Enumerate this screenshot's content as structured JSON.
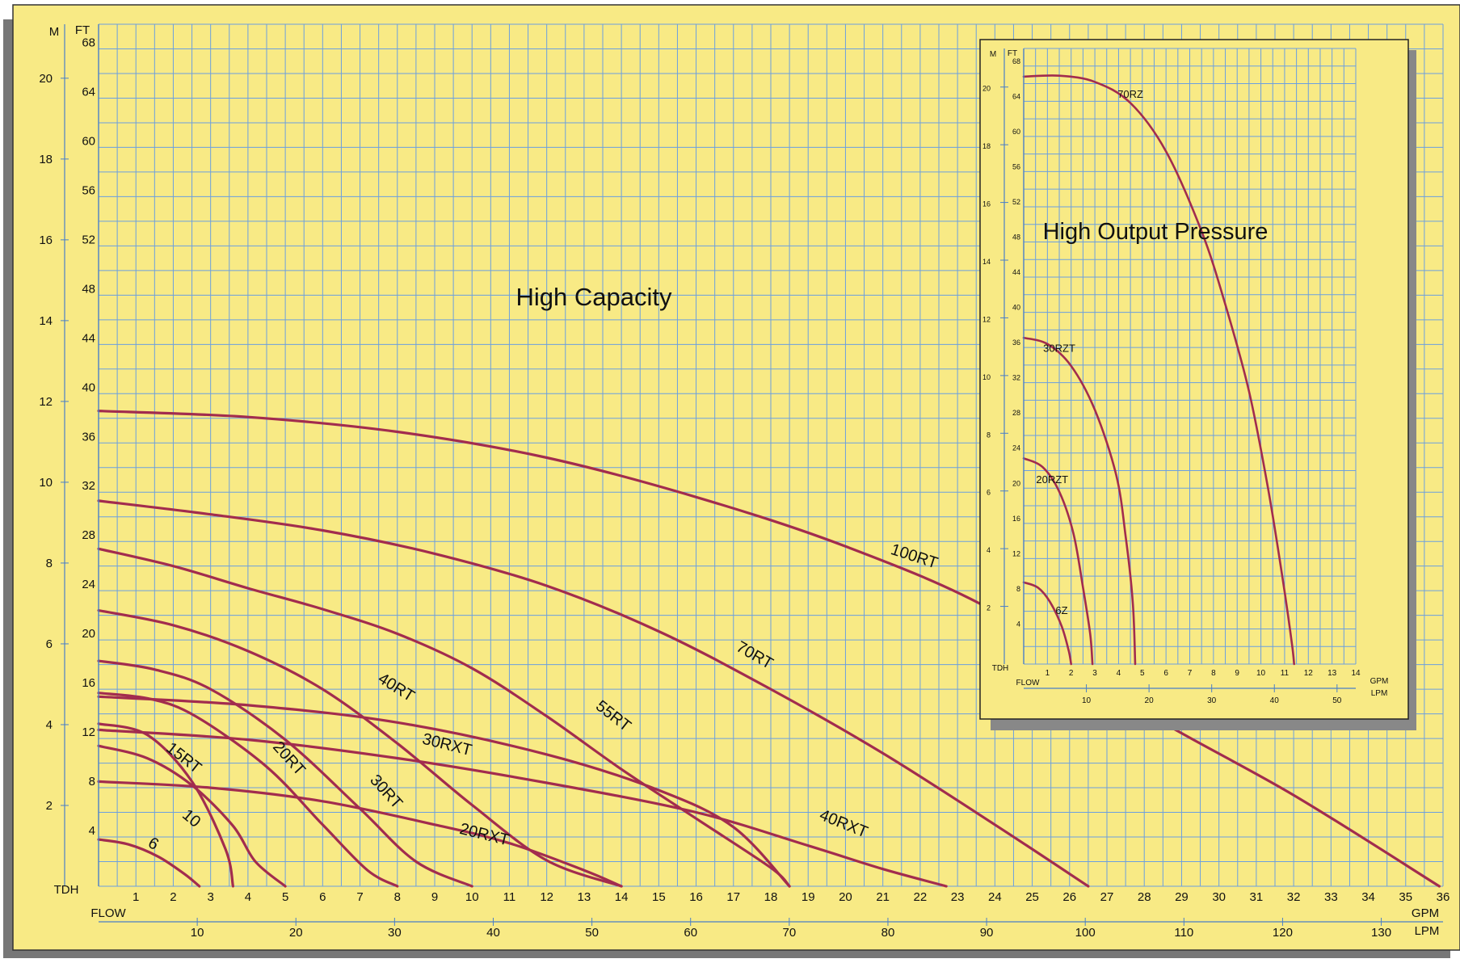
{
  "colors": {
    "background": "#f8ea85",
    "grid": "#6b9fe0",
    "curve": "#a22c4e",
    "shadow": "#777777",
    "text": "#111111"
  },
  "chart_data": [
    {
      "name": "main",
      "type": "line",
      "title": "High Capacity",
      "left_axis_labels": {
        "ft": "FT",
        "m": "M",
        "tdh": "TDH"
      },
      "bottom_axis_labels": {
        "flow": "FLOW",
        "gpm": "GPM",
        "lpm": "LPM"
      },
      "ft_ticks": [
        4,
        8,
        12,
        16,
        20,
        24,
        28,
        32,
        36,
        40,
        44,
        48,
        52,
        56,
        60,
        64,
        68
      ],
      "m_ticks": [
        2,
        4,
        6,
        8,
        10,
        12,
        14,
        16,
        18,
        20
      ],
      "gpm_ticks": [
        1,
        2,
        3,
        4,
        5,
        6,
        7,
        8,
        9,
        10,
        11,
        12,
        13,
        14,
        15,
        16,
        17,
        18,
        19,
        20,
        21,
        22,
        23,
        24,
        25,
        26,
        27,
        28,
        29,
        30,
        31,
        32,
        33,
        34,
        35,
        36
      ],
      "lpm_ticks": [
        10,
        20,
        30,
        40,
        50,
        60,
        70,
        80,
        90,
        100,
        110,
        120,
        130
      ],
      "xlim": [
        0,
        36
      ],
      "ylim": [
        0,
        70
      ],
      "grid": true,
      "series": [
        {
          "name": "100RT",
          "label_at": [
            21.8,
            26.4
          ],
          "label_angle": 18,
          "points": [
            [
              0,
              38.6
            ],
            [
              4,
              38.1
            ],
            [
              8,
              36.9
            ],
            [
              12,
              34.8
            ],
            [
              16,
              31.6
            ],
            [
              20,
              27.6
            ],
            [
              24,
              22.3
            ],
            [
              28,
              14.2
            ],
            [
              32,
              7.4
            ],
            [
              35.9,
              0
            ]
          ]
        },
        {
          "name": "70RT",
          "label_at": [
            17.5,
            18.4
          ],
          "label_angle": 30,
          "points": [
            [
              0,
              31.3
            ],
            [
              3,
              30.2
            ],
            [
              6,
              28.9
            ],
            [
              9,
              27.0
            ],
            [
              12,
              24.4
            ],
            [
              15,
              20.7
            ],
            [
              18,
              16.0
            ],
            [
              21,
              10.8
            ],
            [
              24,
              5.0
            ],
            [
              26.5,
              0
            ]
          ]
        },
        {
          "name": "55RT",
          "label_at": [
            13.7,
            13.5
          ],
          "label_angle": 38,
          "points": [
            [
              0,
              27.4
            ],
            [
              2,
              26.0
            ],
            [
              4,
              24.2
            ],
            [
              6,
              22.5
            ],
            [
              8,
              20.5
            ],
            [
              10,
              17.7
            ],
            [
              12,
              13.8
            ],
            [
              14,
              9.5
            ],
            [
              16,
              5.5
            ],
            [
              18,
              1.5
            ],
            [
              18.5,
              0
            ]
          ]
        },
        {
          "name": "40RT",
          "label_at": [
            7.9,
            15.8
          ],
          "label_angle": 32,
          "points": [
            [
              0,
              22.4
            ],
            [
              2,
              21.2
            ],
            [
              4,
              19.1
            ],
            [
              6,
              16.0
            ],
            [
              8,
              11.6
            ],
            [
              10,
              6.6
            ],
            [
              12,
              2.1
            ],
            [
              14,
              0
            ]
          ]
        },
        {
          "name": "30RT",
          "label_at": [
            7.6,
            7.4
          ],
          "label_angle": 48,
          "points": [
            [
              0,
              18.3
            ],
            [
              1.5,
              17.6
            ],
            [
              3,
              16.0
            ],
            [
              5,
              11.9
            ],
            [
              7,
              6.3
            ],
            [
              8.5,
              2.0
            ],
            [
              10,
              0
            ]
          ]
        },
        {
          "name": "20RT",
          "label_at": [
            5.0,
            10.1
          ],
          "label_angle": 48,
          "points": [
            [
              0,
              15.7
            ],
            [
              1.4,
              15.2
            ],
            [
              2.6,
              13.8
            ],
            [
              4.5,
              9.7
            ],
            [
              6,
              5.0
            ],
            [
              7.2,
              1.3
            ],
            [
              8,
              0
            ]
          ]
        },
        {
          "name": "15RT",
          "label_at": [
            2.2,
            10.1
          ],
          "label_angle": 38,
          "points": [
            [
              0,
              11.4
            ],
            [
              1.3,
              10.4
            ],
            [
              2.5,
              8.2
            ],
            [
              3.6,
              4.9
            ],
            [
              4.2,
              2.0
            ],
            [
              5,
              0
            ]
          ]
        },
        {
          "name": "10",
          "label_at": [
            2.4,
            5.2
          ],
          "label_angle": 40,
          "points": [
            [
              0,
              13.2
            ],
            [
              1.3,
              12.3
            ],
            [
              2.5,
              8.5
            ],
            [
              3.4,
              3.0
            ],
            [
              3.6,
              0
            ]
          ]
        },
        {
          "name": "6",
          "label_at": [
            1.4,
            3.1
          ],
          "label_angle": 30,
          "points": [
            [
              0,
              3.8
            ],
            [
              0.8,
              3.4
            ],
            [
              1.6,
              2.4
            ],
            [
              2.3,
              1.0
            ],
            [
              2.7,
              0
            ]
          ]
        },
        {
          "name": "30RXT",
          "label_at": [
            9.3,
            11.1
          ],
          "label_angle": 14,
          "points": [
            [
              0,
              15.4
            ],
            [
              4,
              14.7
            ],
            [
              8,
              13.3
            ],
            [
              12,
              10.7
            ],
            [
              15,
              7.8
            ],
            [
              17,
              4.8
            ],
            [
              18.5,
              0
            ]
          ]
        },
        {
          "name": "40RXT",
          "label_at": [
            19.9,
            4.7
          ],
          "label_angle": 22,
          "points": [
            [
              0,
              12.7
            ],
            [
              4,
              11.9
            ],
            [
              8,
              10.4
            ],
            [
              12,
              8.4
            ],
            [
              16,
              6.0
            ],
            [
              19,
              3.3
            ],
            [
              21,
              1.4
            ],
            [
              22.7,
              0
            ]
          ]
        },
        {
          "name": "20RXT",
          "label_at": [
            10.3,
            3.8
          ],
          "label_angle": 14,
          "points": [
            [
              0,
              8.5
            ],
            [
              3,
              8.0
            ],
            [
              6,
              6.9
            ],
            [
              9,
              5.0
            ],
            [
              11,
              3.5
            ],
            [
              13,
              1.3
            ],
            [
              14,
              0
            ]
          ]
        }
      ]
    },
    {
      "name": "inset",
      "type": "line",
      "title": "High Output Pressure",
      "left_axis_labels": {
        "ft": "FT",
        "m": "M",
        "tdh": "TDH"
      },
      "bottom_axis_labels": {
        "flow": "FLOW",
        "gpm": "GPM",
        "lpm": "LPM"
      },
      "ft_ticks": [
        4,
        8,
        12,
        16,
        20,
        24,
        28,
        32,
        36,
        40,
        44,
        48,
        52,
        56,
        60,
        64,
        68
      ],
      "m_ticks": [
        2,
        4,
        6,
        8,
        10,
        12,
        14,
        16,
        18,
        20
      ],
      "gpm_ticks": [
        1,
        2,
        3,
        4,
        5,
        6,
        7,
        8,
        9,
        10,
        11,
        12,
        13,
        14
      ],
      "lpm_ticks": [
        10,
        20,
        30,
        40,
        50
      ],
      "xlim": [
        0,
        14
      ],
      "ylim": [
        0,
        70
      ],
      "grid": true,
      "series": [
        {
          "name": "70RZ",
          "label_at": [
            4.5,
            64.4
          ],
          "points": [
            [
              0,
              66.8
            ],
            [
              1.5,
              66.9
            ],
            [
              3,
              66.2
            ],
            [
              4.5,
              63.8
            ],
            [
              6,
              58.3
            ],
            [
              7.5,
              49.2
            ],
            [
              8.5,
              40.9
            ],
            [
              9.5,
              31.0
            ],
            [
              10.3,
              20.0
            ],
            [
              10.9,
              10.0
            ],
            [
              11.3,
              2.5
            ],
            [
              11.4,
              0
            ]
          ]
        },
        {
          "name": "30RZT",
          "label_at": [
            1.5,
            35.5
          ],
          "points": [
            [
              0,
              37.1
            ],
            [
              1,
              36.4
            ],
            [
              2,
              33.9
            ],
            [
              3,
              28.9
            ],
            [
              3.9,
              21.5
            ],
            [
              4.3,
              14.5
            ],
            [
              4.6,
              7.0
            ],
            [
              4.7,
              0
            ]
          ]
        },
        {
          "name": "20RZT",
          "label_at": [
            1.2,
            20.6
          ],
          "points": [
            [
              0,
              23.4
            ],
            [
              0.8,
              22.4
            ],
            [
              1.5,
              19.6
            ],
            [
              2.1,
              14.8
            ],
            [
              2.5,
              8.7
            ],
            [
              2.8,
              3.5
            ],
            [
              2.9,
              0
            ]
          ]
        },
        {
          "name": "6Z",
          "label_at": [
            1.6,
            5.7
          ],
          "points": [
            [
              0,
              9.3
            ],
            [
              0.6,
              8.7
            ],
            [
              1.1,
              7.1
            ],
            [
              1.6,
              4.3
            ],
            [
              1.9,
              1.5
            ],
            [
              2.0,
              0
            ]
          ]
        }
      ]
    }
  ]
}
